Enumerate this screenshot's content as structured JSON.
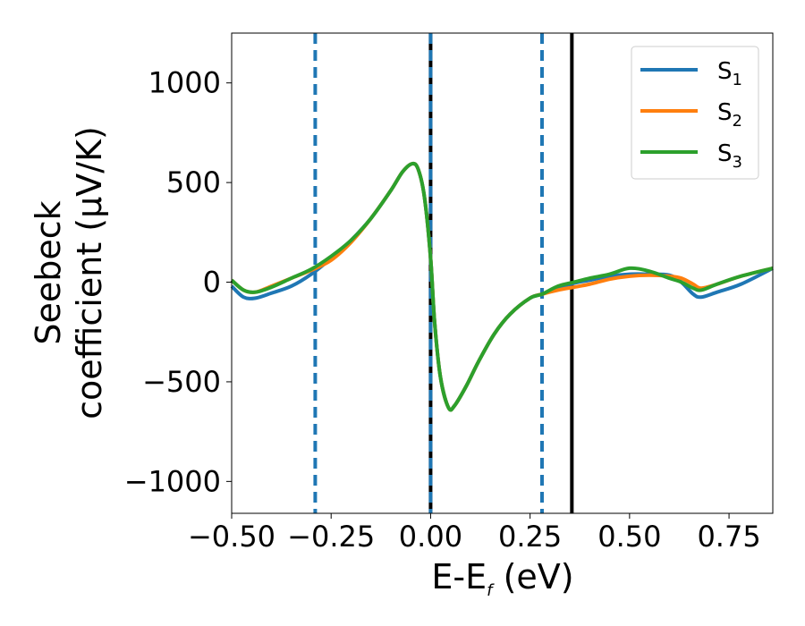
{
  "chart_data": {
    "type": "line",
    "title": "",
    "xlabel": {
      "main": "E-E",
      "sub": "f",
      "unit": " (eV)"
    },
    "ylabel": {
      "line1": "Seebeck",
      "line2": "coefficient  (μV/K)"
    },
    "xlim": [
      -0.5,
      0.86
    ],
    "ylim": [
      -1160,
      1250
    ],
    "xticks": [
      -0.5,
      -0.25,
      0.0,
      0.25,
      0.5,
      0.75
    ],
    "xtick_labels": [
      "−0.50",
      "−0.25",
      "0.00",
      "0.25",
      "0.50",
      "0.75"
    ],
    "yticks": [
      1000,
      500,
      0,
      -500,
      -1000
    ],
    "ytick_labels": [
      "1000",
      "500",
      "0",
      "−500",
      "−1000"
    ],
    "grid": false,
    "legend_position": "top-right",
    "series": [
      {
        "name": "S1",
        "label_main": "S",
        "label_sub": "1",
        "color": "#1f77b4",
        "x": [
          -0.5,
          -0.47,
          -0.44,
          -0.4,
          -0.35,
          -0.3,
          -0.25,
          -0.2,
          -0.15,
          -0.1,
          -0.07,
          -0.045,
          -0.03,
          -0.015,
          0.0,
          0.01,
          0.025,
          0.045,
          0.06,
          0.09,
          0.12,
          0.16,
          0.2,
          0.25,
          0.28,
          0.32,
          0.36,
          0.4,
          0.45,
          0.5,
          0.55,
          0.6,
          0.63,
          0.66,
          0.68,
          0.72,
          0.78,
          0.86
        ],
        "y": [
          -20,
          -75,
          -80,
          -55,
          -20,
          40,
          120,
          210,
          320,
          460,
          555,
          595,
          560,
          420,
          120,
          -200,
          -480,
          -630,
          -620,
          -520,
          -400,
          -260,
          -160,
          -80,
          -60,
          -30,
          -5,
          10,
          30,
          40,
          40,
          35,
          0,
          -60,
          -75,
          -50,
          -10,
          70
        ]
      },
      {
        "name": "S2",
        "label_main": "S",
        "label_sub": "2",
        "color": "#ff7f0e",
        "x": [
          -0.5,
          -0.47,
          -0.44,
          -0.4,
          -0.35,
          -0.3,
          -0.25,
          -0.2,
          -0.15,
          -0.1,
          -0.07,
          -0.045,
          -0.03,
          -0.015,
          0.0,
          0.01,
          0.025,
          0.045,
          0.06,
          0.09,
          0.12,
          0.16,
          0.2,
          0.25,
          0.28,
          0.32,
          0.36,
          0.4,
          0.45,
          0.5,
          0.55,
          0.6,
          0.63,
          0.66,
          0.68,
          0.72,
          0.78,
          0.86
        ],
        "y": [
          10,
          -40,
          -50,
          -20,
          20,
          60,
          110,
          200,
          320,
          460,
          555,
          595,
          560,
          420,
          120,
          -200,
          -480,
          -630,
          -620,
          -520,
          -400,
          -260,
          -160,
          -80,
          -60,
          -40,
          -25,
          -10,
          15,
          30,
          35,
          30,
          20,
          -10,
          -30,
          -10,
          30,
          70
        ]
      },
      {
        "name": "S3",
        "label_main": "S",
        "label_sub": "3",
        "color": "#2ca02c",
        "x": [
          -0.5,
          -0.47,
          -0.44,
          -0.4,
          -0.35,
          -0.3,
          -0.25,
          -0.2,
          -0.15,
          -0.1,
          -0.07,
          -0.045,
          -0.03,
          -0.015,
          0.0,
          0.01,
          0.025,
          0.045,
          0.06,
          0.09,
          0.12,
          0.16,
          0.2,
          0.25,
          0.28,
          0.32,
          0.36,
          0.4,
          0.45,
          0.5,
          0.55,
          0.6,
          0.63,
          0.66,
          0.68,
          0.72,
          0.78,
          0.86
        ],
        "y": [
          10,
          -40,
          -50,
          -25,
          20,
          65,
          130,
          210,
          320,
          460,
          555,
          595,
          560,
          420,
          120,
          -200,
          -480,
          -630,
          -620,
          -520,
          -400,
          -260,
          -160,
          -80,
          -60,
          -20,
          0,
          20,
          40,
          70,
          55,
          20,
          0,
          -30,
          -40,
          -10,
          30,
          70
        ]
      }
    ],
    "vlines": [
      {
        "x": -0.29,
        "style": "dashed",
        "color": "#1f77b4"
      },
      {
        "x": 0.0,
        "style": "solid",
        "color": "#000000"
      },
      {
        "x": 0.0,
        "style": "dashed",
        "color": "#1f77b4"
      },
      {
        "x": 0.28,
        "style": "dashed",
        "color": "#1f77b4"
      },
      {
        "x": 0.355,
        "style": "solid",
        "color": "#000000"
      }
    ]
  }
}
